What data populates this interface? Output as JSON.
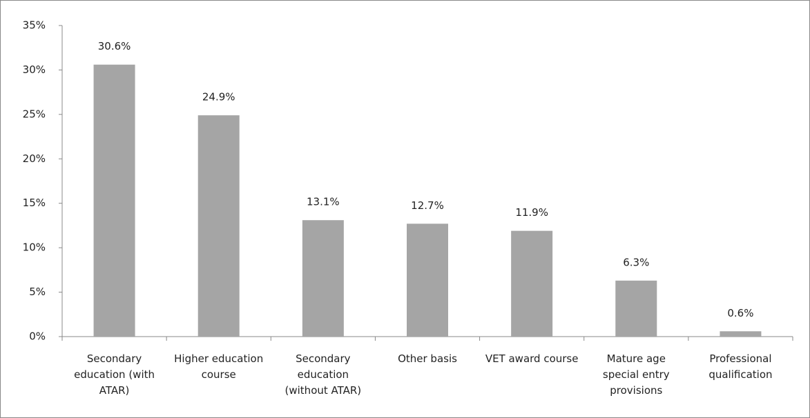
{
  "chart_data": {
    "type": "bar",
    "categories": [
      "Secondary education (with ATAR)",
      "Higher education course",
      "Secondary education (without ATAR)",
      "Other basis",
      "VET award course",
      "Mature age special entry provisions",
      "Professional qualification"
    ],
    "values": [
      30.6,
      24.9,
      13.1,
      12.7,
      11.9,
      6.3,
      0.6
    ],
    "value_labels": [
      "30.6%",
      "24.9%",
      "13.1%",
      "12.7%",
      "11.9%",
      "6.3%",
      "0.6%"
    ],
    "color": "#a5a5a5",
    "ylim": [
      0,
      35
    ],
    "yticks": [
      {
        "value": 0,
        "label": "0%"
      },
      {
        "value": 5,
        "label": "5%"
      },
      {
        "value": 10,
        "label": "10%"
      },
      {
        "value": 15,
        "label": "15%"
      },
      {
        "value": 20,
        "label": "20%"
      },
      {
        "value": 25,
        "label": "25%"
      },
      {
        "value": 30,
        "label": "30%"
      },
      {
        "value": 35,
        "label": "35%"
      }
    ],
    "grid": false
  }
}
